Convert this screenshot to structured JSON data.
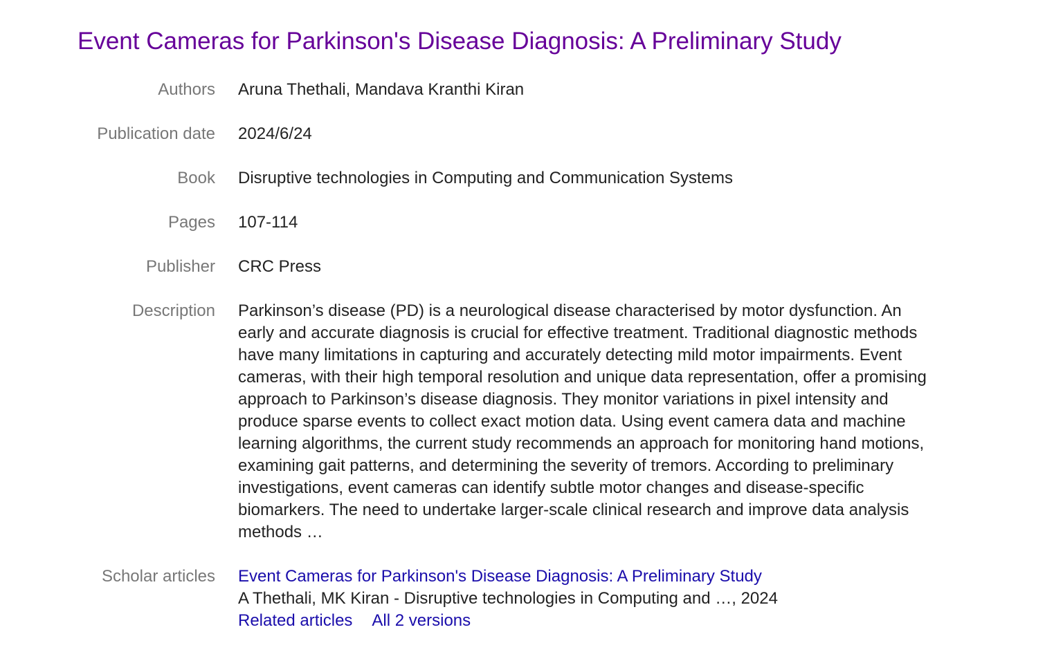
{
  "title": "Event Cameras for Parkinson's Disease Diagnosis: A Preliminary Study",
  "fields": [
    {
      "label": "Authors",
      "value": "Aruna Thethali, Mandava Kranthi Kiran"
    },
    {
      "label": "Publication date",
      "value": "2024/6/24"
    },
    {
      "label": "Book",
      "value": "Disruptive technologies in Computing and Communication Systems"
    },
    {
      "label": "Pages",
      "value": "107-114"
    },
    {
      "label": "Publisher",
      "value": "CRC Press"
    },
    {
      "label": "Description",
      "value": "Parkinson’s disease (PD) is a neurological disease characterised by motor dysfunction. An early and accurate diagnosis is crucial for effective treatment. Traditional diagnostic methods have many limitations in capturing and accurately detecting mild motor impairments. Event cameras, with their high temporal resolution and unique data representation, offer a promising approach to Parkinson’s disease diagnosis. They monitor variations in pixel intensity and produce sparse events to collect exact motion data. Using event camera data and machine learning algorithms, the current study recommends an approach for monitoring hand motions, examining gait patterns, and determining the severity of tremors. According to preliminary investigations, event cameras can identify subtle motor changes and disease-specific biomarkers. The need to undertake larger-scale clinical research and improve data analysis methods …"
    }
  ],
  "scholar": {
    "label": "Scholar articles",
    "article_title": "Event Cameras for Parkinson's Disease Diagnosis: A Preliminary Study",
    "citation": "A Thethali, MK Kiran - Disruptive technologies in Computing and …, 2024",
    "related": "Related articles",
    "versions": "All 2 versions"
  },
  "colors": {
    "title": "#660099",
    "link": "#1a0dab",
    "label": "#777777"
  }
}
